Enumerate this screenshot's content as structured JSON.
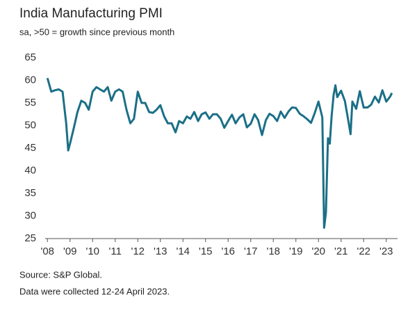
{
  "chart_data": {
    "type": "line",
    "title": "India Manufacturing PMI",
    "subtitle": "sa, >50 = growth since previous month",
    "source": "Source: S&P Global.",
    "note": "Data were collected 12-24 April 2023.",
    "color": "#1b6f87",
    "x": [
      2008.0,
      2008.17,
      2008.33,
      2008.5,
      2008.67,
      2008.83,
      2008.92,
      2009.0,
      2009.17,
      2009.33,
      2009.5,
      2009.67,
      2009.83,
      2010.0,
      2010.17,
      2010.33,
      2010.5,
      2010.67,
      2010.83,
      2011.0,
      2011.17,
      2011.33,
      2011.5,
      2011.67,
      2011.83,
      2012.0,
      2012.17,
      2012.33,
      2012.5,
      2012.67,
      2012.83,
      2013.0,
      2013.17,
      2013.33,
      2013.5,
      2013.67,
      2013.83,
      2014.0,
      2014.17,
      2014.33,
      2014.5,
      2014.67,
      2014.83,
      2015.0,
      2015.17,
      2015.33,
      2015.5,
      2015.67,
      2015.83,
      2016.0,
      2016.17,
      2016.33,
      2016.5,
      2016.67,
      2016.83,
      2017.0,
      2017.17,
      2017.33,
      2017.5,
      2017.67,
      2017.83,
      2018.0,
      2018.17,
      2018.33,
      2018.5,
      2018.67,
      2018.83,
      2019.0,
      2019.17,
      2019.33,
      2019.5,
      2019.67,
      2019.83,
      2020.0,
      2020.17,
      2020.25,
      2020.33,
      2020.42,
      2020.5,
      2020.58,
      2020.67,
      2020.75,
      2020.83,
      2021.0,
      2021.17,
      2021.33,
      2021.42,
      2021.5,
      2021.67,
      2021.83,
      2022.0,
      2022.17,
      2022.33,
      2022.5,
      2022.67,
      2022.83,
      2023.0,
      2023.17,
      2023.25
    ],
    "values": [
      60.5,
      57.5,
      57.8,
      58,
      57.5,
      50.5,
      44.5,
      46,
      49.5,
      53,
      55.5,
      55,
      53.5,
      57.5,
      58.5,
      58,
      57.5,
      58.5,
      55.5,
      57.5,
      58,
      57.5,
      53.5,
      50.5,
      51.5,
      57.5,
      55,
      55,
      53,
      52.8,
      53.5,
      54.5,
      52,
      50.5,
      50.5,
      48.5,
      51,
      50.5,
      52,
      51.5,
      53,
      51,
      52.5,
      52.9,
      51.5,
      52.5,
      52.5,
      51.5,
      49.5,
      51,
      52.4,
      50.5,
      51.8,
      52.5,
      49.6,
      50.4,
      52.5,
      51.2,
      47.9,
      51.2,
      52.6,
      52.1,
      51,
      53.1,
      51.7,
      53.1,
      54,
      53.9,
      52.6,
      52.1,
      51.4,
      50.6,
      52.7,
      55.3,
      51.8,
      27.4,
      30.8,
      47.2,
      46,
      52,
      56.8,
      58.9,
      56.3,
      57.7,
      55.4,
      50.8,
      48.1,
      55.3,
      53.7,
      57.6,
      54,
      54,
      54.6,
      56.4,
      55.1,
      57.8,
      55.3,
      56.4,
      57.2
    ],
    "xlim": [
      2007.9,
      2023.5
    ],
    "xticks": [
      {
        "value": 2008,
        "label": "'08"
      },
      {
        "value": 2009,
        "label": "'09"
      },
      {
        "value": 2010,
        "label": "'10"
      },
      {
        "value": 2011,
        "label": "'11"
      },
      {
        "value": 2012,
        "label": "'12"
      },
      {
        "value": 2013,
        "label": "'13"
      },
      {
        "value": 2014,
        "label": "'14"
      },
      {
        "value": 2015,
        "label": "'15"
      },
      {
        "value": 2016,
        "label": "'16"
      },
      {
        "value": 2017,
        "label": "'17"
      },
      {
        "value": 2018,
        "label": "'18"
      },
      {
        "value": 2019,
        "label": "'19"
      },
      {
        "value": 2020,
        "label": "'20"
      },
      {
        "value": 2021,
        "label": "'21"
      },
      {
        "value": 2022,
        "label": "'22"
      },
      {
        "value": 2023,
        "label": "'23"
      }
    ],
    "ylim": [
      25,
      65
    ],
    "yticks": [
      25,
      30,
      35,
      40,
      45,
      50,
      55,
      60,
      65
    ],
    "grid": false
  }
}
